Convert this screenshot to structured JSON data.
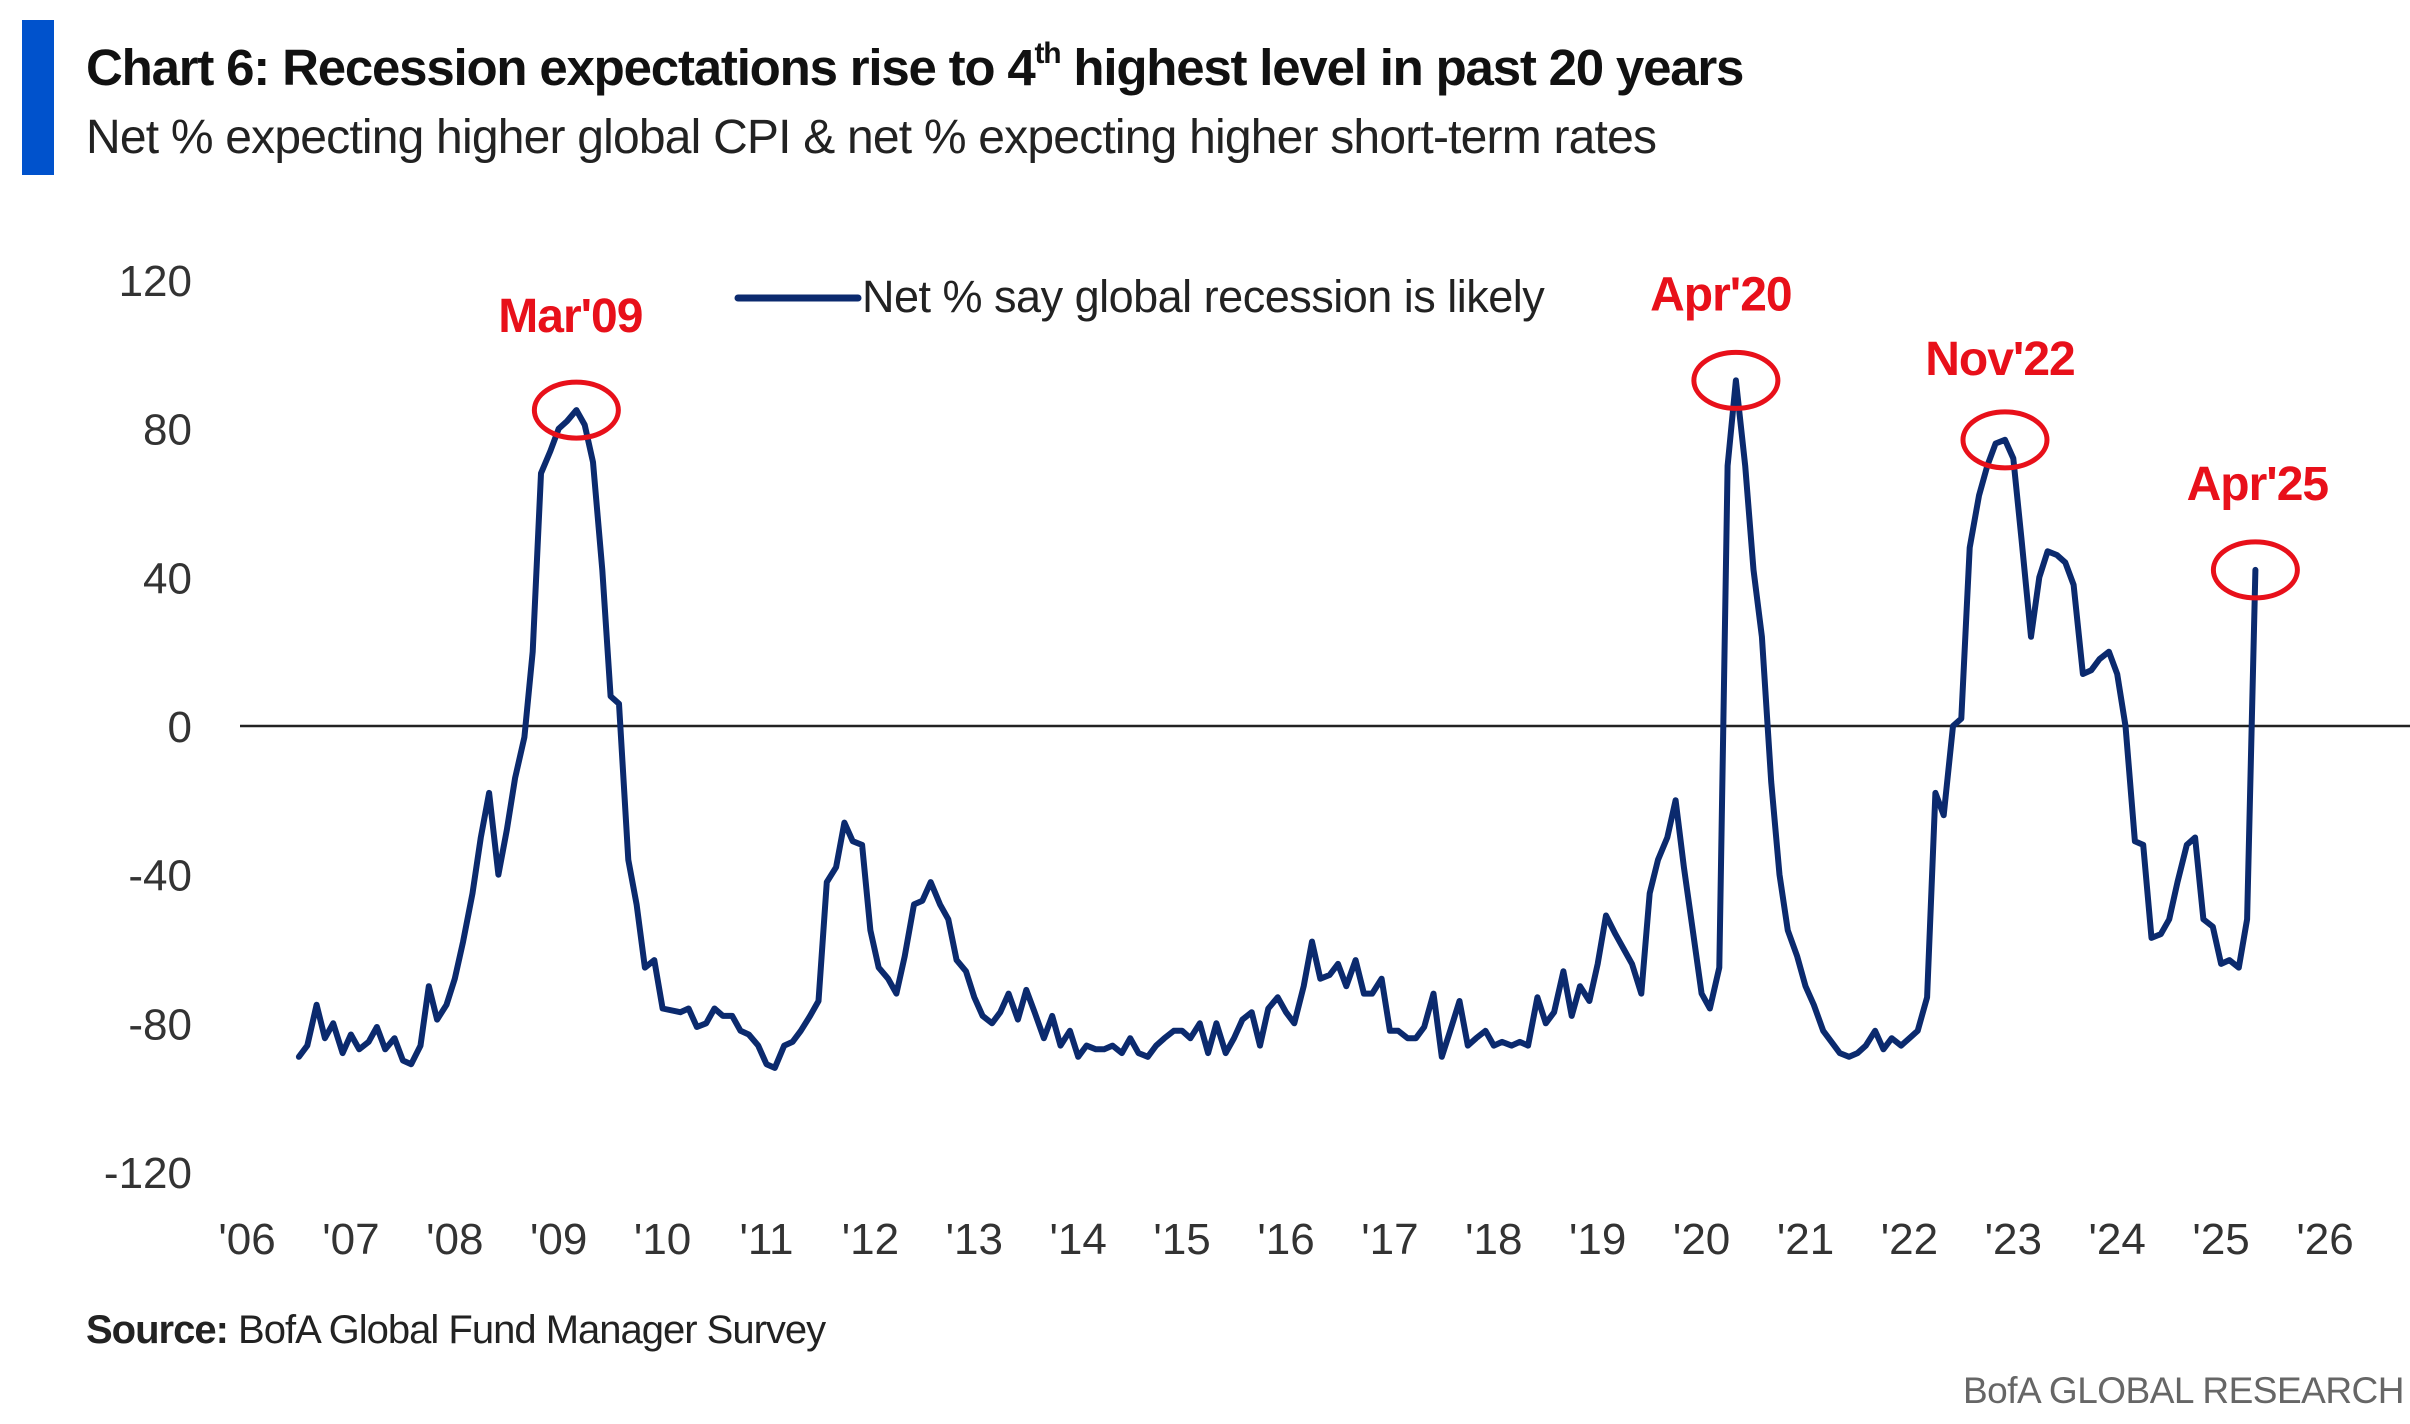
{
  "header": {
    "title_prefix": "Chart 6: Recession expectations rise to 4",
    "title_sup": "th",
    "title_suffix": " highest level in past 20 years",
    "subtitle": "Net % expecting higher global CPI & net % expecting higher short-term rates"
  },
  "footer": {
    "source_label": "Source:",
    "source_text": " BofA Global Fund Manager Survey",
    "branding": "BofA GLOBAL RESEARCH"
  },
  "colors": {
    "accent": "#0052cc",
    "series": "#0b2a6e",
    "annotation": "#e8101a",
    "zero_line": "#222222"
  },
  "chart_data": {
    "type": "line",
    "title": "",
    "xlabel": "",
    "ylabel": "",
    "ylim": [
      -120,
      120
    ],
    "yticks": [
      120,
      80,
      40,
      0,
      -40,
      -80,
      -120
    ],
    "xlim": [
      2006,
      2026
    ],
    "xtick_labels": [
      "'06",
      "'07",
      "'08",
      "'09",
      "'10",
      "'11",
      "'12",
      "'13",
      "'14",
      "'15",
      "'16",
      "'17",
      "'18",
      "'19",
      "'20",
      "'21",
      "'22",
      "'23",
      "'24",
      "'25",
      "'26"
    ],
    "grid": false,
    "zero_line": true,
    "legend": {
      "position": "top-center",
      "entries": [
        "Net % say global recession is likely"
      ]
    },
    "series": [
      {
        "name": "Net % say global recession is likely",
        "points": [
          [
            2006.5,
            -89
          ],
          [
            2006.58,
            -86
          ],
          [
            2006.67,
            -75
          ],
          [
            2006.75,
            -84
          ],
          [
            2006.83,
            -80
          ],
          [
            2006.92,
            -88
          ],
          [
            2007.0,
            -83
          ],
          [
            2007.08,
            -87
          ],
          [
            2007.17,
            -85
          ],
          [
            2007.25,
            -81
          ],
          [
            2007.33,
            -87
          ],
          [
            2007.42,
            -84
          ],
          [
            2007.5,
            -90
          ],
          [
            2007.58,
            -91
          ],
          [
            2007.67,
            -86
          ],
          [
            2007.75,
            -70
          ],
          [
            2007.83,
            -79
          ],
          [
            2007.92,
            -75
          ],
          [
            2008.0,
            -68
          ],
          [
            2008.08,
            -58
          ],
          [
            2008.17,
            -45
          ],
          [
            2008.25,
            -30
          ],
          [
            2008.33,
            -18
          ],
          [
            2008.42,
            -40
          ],
          [
            2008.5,
            -28
          ],
          [
            2008.58,
            -14
          ],
          [
            2008.67,
            -3
          ],
          [
            2008.75,
            20
          ],
          [
            2008.83,
            68
          ],
          [
            2008.92,
            74
          ],
          [
            2009.0,
            80
          ],
          [
            2009.08,
            82
          ],
          [
            2009.17,
            85
          ],
          [
            2009.25,
            81
          ],
          [
            2009.33,
            71
          ],
          [
            2009.42,
            42
          ],
          [
            2009.5,
            8
          ],
          [
            2009.58,
            6
          ],
          [
            2009.67,
            -36
          ],
          [
            2009.75,
            -48
          ],
          [
            2009.83,
            -65
          ],
          [
            2009.92,
            -63
          ],
          [
            2010.0,
            -76
          ],
          [
            2010.17,
            -77
          ],
          [
            2010.25,
            -76
          ],
          [
            2010.33,
            -81
          ],
          [
            2010.42,
            -80
          ],
          [
            2010.5,
            -76
          ],
          [
            2010.58,
            -78
          ],
          [
            2010.67,
            -78
          ],
          [
            2010.75,
            -82
          ],
          [
            2010.83,
            -83
          ],
          [
            2010.92,
            -86
          ],
          [
            2011.0,
            -91
          ],
          [
            2011.08,
            -92
          ],
          [
            2011.17,
            -86
          ],
          [
            2011.25,
            -85
          ],
          [
            2011.33,
            -82
          ],
          [
            2011.42,
            -78
          ],
          [
            2011.5,
            -74
          ],
          [
            2011.58,
            -42
          ],
          [
            2011.67,
            -38
          ],
          [
            2011.75,
            -26
          ],
          [
            2011.83,
            -31
          ],
          [
            2011.92,
            -32
          ],
          [
            2012.0,
            -55
          ],
          [
            2012.08,
            -65
          ],
          [
            2012.17,
            -68
          ],
          [
            2012.25,
            -72
          ],
          [
            2012.33,
            -62
          ],
          [
            2012.42,
            -48
          ],
          [
            2012.5,
            -47
          ],
          [
            2012.58,
            -42
          ],
          [
            2012.67,
            -48
          ],
          [
            2012.75,
            -52
          ],
          [
            2012.83,
            -63
          ],
          [
            2012.92,
            -66
          ],
          [
            2013.0,
            -73
          ],
          [
            2013.08,
            -78
          ],
          [
            2013.17,
            -80
          ],
          [
            2013.25,
            -77
          ],
          [
            2013.33,
            -72
          ],
          [
            2013.42,
            -79
          ],
          [
            2013.5,
            -71
          ],
          [
            2013.58,
            -77
          ],
          [
            2013.67,
            -84
          ],
          [
            2013.75,
            -78
          ],
          [
            2013.83,
            -86
          ],
          [
            2013.92,
            -82
          ],
          [
            2014.0,
            -89
          ],
          [
            2014.08,
            -86
          ],
          [
            2014.17,
            -87
          ],
          [
            2014.25,
            -87
          ],
          [
            2014.33,
            -86
          ],
          [
            2014.42,
            -88
          ],
          [
            2014.5,
            -84
          ],
          [
            2014.58,
            -88
          ],
          [
            2014.67,
            -89
          ],
          [
            2014.75,
            -86
          ],
          [
            2014.83,
            -84
          ],
          [
            2014.92,
            -82
          ],
          [
            2015.0,
            -82
          ],
          [
            2015.08,
            -84
          ],
          [
            2015.17,
            -80
          ],
          [
            2015.25,
            -88
          ],
          [
            2015.33,
            -80
          ],
          [
            2015.42,
            -88
          ],
          [
            2015.5,
            -84
          ],
          [
            2015.58,
            -79
          ],
          [
            2015.67,
            -77
          ],
          [
            2015.75,
            -86
          ],
          [
            2015.83,
            -76
          ],
          [
            2015.92,
            -73
          ],
          [
            2016.0,
            -77
          ],
          [
            2016.08,
            -80
          ],
          [
            2016.17,
            -70
          ],
          [
            2016.25,
            -58
          ],
          [
            2016.33,
            -68
          ],
          [
            2016.42,
            -67
          ],
          [
            2016.5,
            -64
          ],
          [
            2016.58,
            -70
          ],
          [
            2016.67,
            -63
          ],
          [
            2016.75,
            -72
          ],
          [
            2016.83,
            -72
          ],
          [
            2016.92,
            -68
          ],
          [
            2017.0,
            -82
          ],
          [
            2017.08,
            -82
          ],
          [
            2017.17,
            -84
          ],
          [
            2017.25,
            -84
          ],
          [
            2017.33,
            -81
          ],
          [
            2017.42,
            -72
          ],
          [
            2017.5,
            -89
          ],
          [
            2017.58,
            -82
          ],
          [
            2017.67,
            -74
          ],
          [
            2017.75,
            -86
          ],
          [
            2017.83,
            -84
          ],
          [
            2017.92,
            -82
          ],
          [
            2018.0,
            -86
          ],
          [
            2018.08,
            -85
          ],
          [
            2018.17,
            -86
          ],
          [
            2018.25,
            -85
          ],
          [
            2018.33,
            -86
          ],
          [
            2018.42,
            -73
          ],
          [
            2018.5,
            -80
          ],
          [
            2018.58,
            -77
          ],
          [
            2018.67,
            -66
          ],
          [
            2018.75,
            -78
          ],
          [
            2018.83,
            -70
          ],
          [
            2018.92,
            -74
          ],
          [
            2019.0,
            -64
          ],
          [
            2019.08,
            -51
          ],
          [
            2019.17,
            -56
          ],
          [
            2019.25,
            -60
          ],
          [
            2019.33,
            -64
          ],
          [
            2019.42,
            -72
          ],
          [
            2019.5,
            -45
          ],
          [
            2019.58,
            -36
          ],
          [
            2019.67,
            -30
          ],
          [
            2019.75,
            -20
          ],
          [
            2019.83,
            -38
          ],
          [
            2019.92,
            -56
          ],
          [
            2020.0,
            -72
          ],
          [
            2020.08,
            -76
          ],
          [
            2020.17,
            -65
          ],
          [
            2020.25,
            70
          ],
          [
            2020.33,
            93
          ],
          [
            2020.42,
            70
          ],
          [
            2020.5,
            42
          ],
          [
            2020.58,
            24
          ],
          [
            2020.67,
            -15
          ],
          [
            2020.75,
            -40
          ],
          [
            2020.83,
            -55
          ],
          [
            2020.92,
            -62
          ],
          [
            2021.0,
            -70
          ],
          [
            2021.08,
            -75
          ],
          [
            2021.17,
            -82
          ],
          [
            2021.25,
            -85
          ],
          [
            2021.33,
            -88
          ],
          [
            2021.42,
            -89
          ],
          [
            2021.5,
            -88
          ],
          [
            2021.58,
            -86
          ],
          [
            2021.67,
            -82
          ],
          [
            2021.75,
            -87
          ],
          [
            2021.83,
            -84
          ],
          [
            2021.92,
            -86
          ],
          [
            2022.0,
            -84
          ],
          [
            2022.08,
            -82
          ],
          [
            2022.17,
            -73
          ],
          [
            2022.25,
            -18
          ],
          [
            2022.33,
            -24
          ],
          [
            2022.42,
            0
          ],
          [
            2022.5,
            2
          ],
          [
            2022.58,
            48
          ],
          [
            2022.67,
            62
          ],
          [
            2022.75,
            70
          ],
          [
            2022.83,
            76
          ],
          [
            2022.92,
            77
          ],
          [
            2023.0,
            72
          ],
          [
            2023.08,
            50
          ],
          [
            2023.17,
            24
          ],
          [
            2023.25,
            40
          ],
          [
            2023.33,
            47
          ],
          [
            2023.42,
            46
          ],
          [
            2023.5,
            44
          ],
          [
            2023.58,
            38
          ],
          [
            2023.67,
            14
          ],
          [
            2023.75,
            15
          ],
          [
            2023.83,
            18
          ],
          [
            2023.92,
            20
          ],
          [
            2024.0,
            14
          ],
          [
            2024.08,
            0
          ],
          [
            2024.17,
            -31
          ],
          [
            2024.25,
            -32
          ],
          [
            2024.33,
            -57
          ],
          [
            2024.42,
            -56
          ],
          [
            2024.5,
            -52
          ],
          [
            2024.58,
            -42
          ],
          [
            2024.67,
            -32
          ],
          [
            2024.75,
            -30
          ],
          [
            2024.83,
            -52
          ],
          [
            2024.92,
            -54
          ],
          [
            2025.0,
            -64
          ],
          [
            2025.08,
            -63
          ],
          [
            2025.17,
            -65
          ],
          [
            2025.25,
            -52
          ],
          [
            2025.33,
            42
          ]
        ]
      }
    ],
    "annotations": [
      {
        "label": "Mar'09",
        "x": 2009.17,
        "y": 85
      },
      {
        "label": "Apr'20",
        "x": 2020.33,
        "y": 93
      },
      {
        "label": "Nov'22",
        "x": 2022.92,
        "y": 77
      },
      {
        "label": "Apr'25",
        "x": 2025.33,
        "y": 42
      }
    ]
  }
}
